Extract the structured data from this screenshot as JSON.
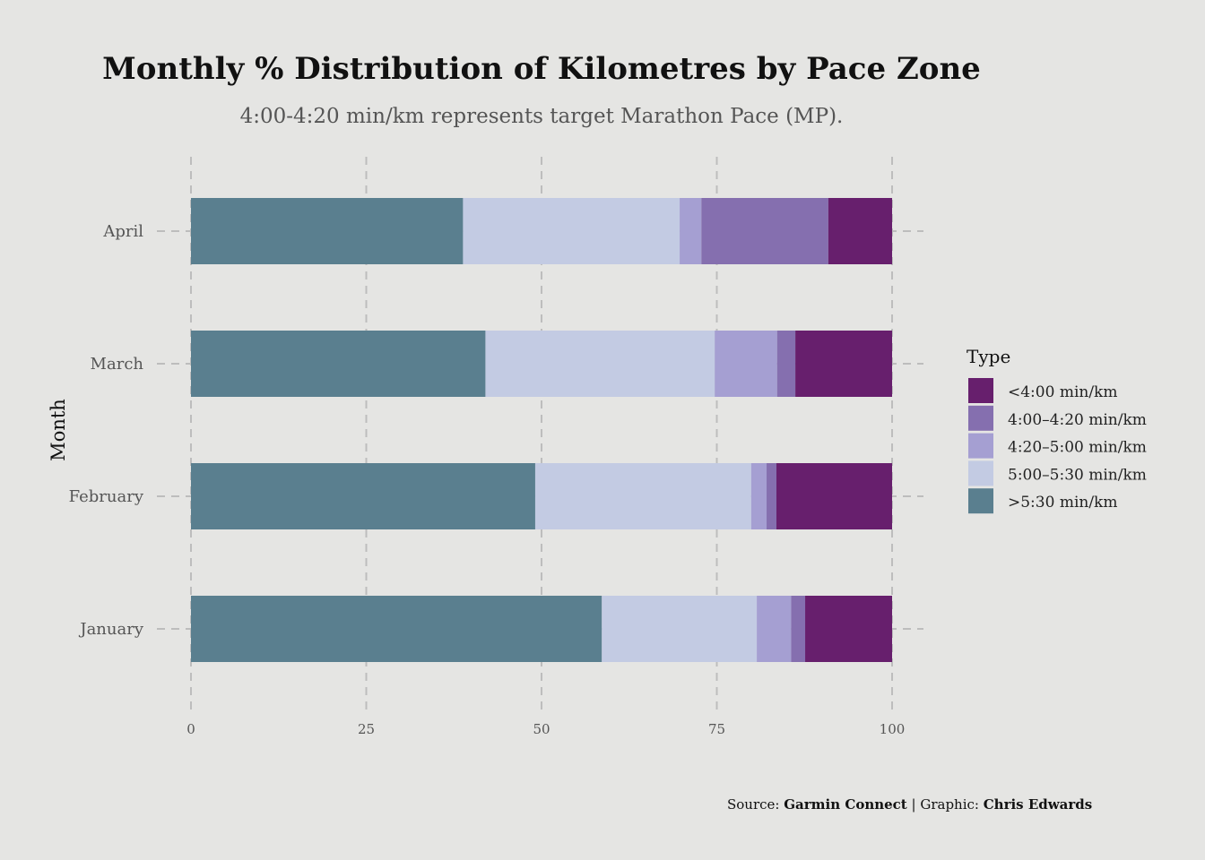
{
  "chart_data": {
    "type": "bar",
    "orientation": "horizontal",
    "stacked": true,
    "title": "Monthly % Distribution of Kilometres by Pace Zone",
    "subtitle": "4:00-4:20 min/km represents target Marathon Pace (MP).",
    "ylabel": "Month",
    "xlabel": "",
    "xlim": [
      0,
      100
    ],
    "xticks": [
      0,
      25,
      50,
      75,
      100
    ],
    "categories": [
      "January",
      "February",
      "March",
      "April"
    ],
    "grid": true,
    "legend_position": "right",
    "legend_title": "Type",
    "series": [
      {
        "name": ">5:30 min/km",
        "color": "#5a7f8f",
        "values": [
          58.6,
          49.1,
          42.0,
          38.8
        ]
      },
      {
        "name": "5:00–5:30 min/km",
        "color": "#c3cbe3",
        "values": [
          22.1,
          30.8,
          32.7,
          30.9
        ]
      },
      {
        "name": "4:20–5:00 min/km",
        "color": "#a59fd2",
        "values": [
          4.9,
          2.2,
          8.9,
          3.1
        ]
      },
      {
        "name": "4:00–4:20 min/km",
        "color": "#856faf",
        "values": [
          2.0,
          1.4,
          2.6,
          18.1
        ]
      },
      {
        "name": "<4:00 min/km",
        "color": "#671f6d",
        "values": [
          12.4,
          16.5,
          13.8,
          9.1
        ]
      }
    ],
    "legend_order": [
      "<4:00 min/km",
      "4:00–4:20 min/km",
      "4:20–5:00 min/km",
      "5:00–5:30 min/km",
      ">5:30 min/km"
    ],
    "caption": {
      "prefix": "Source: ",
      "source": "Garmin Connect",
      "separator": " | Graphic: ",
      "author": "Chris Edwards"
    }
  }
}
